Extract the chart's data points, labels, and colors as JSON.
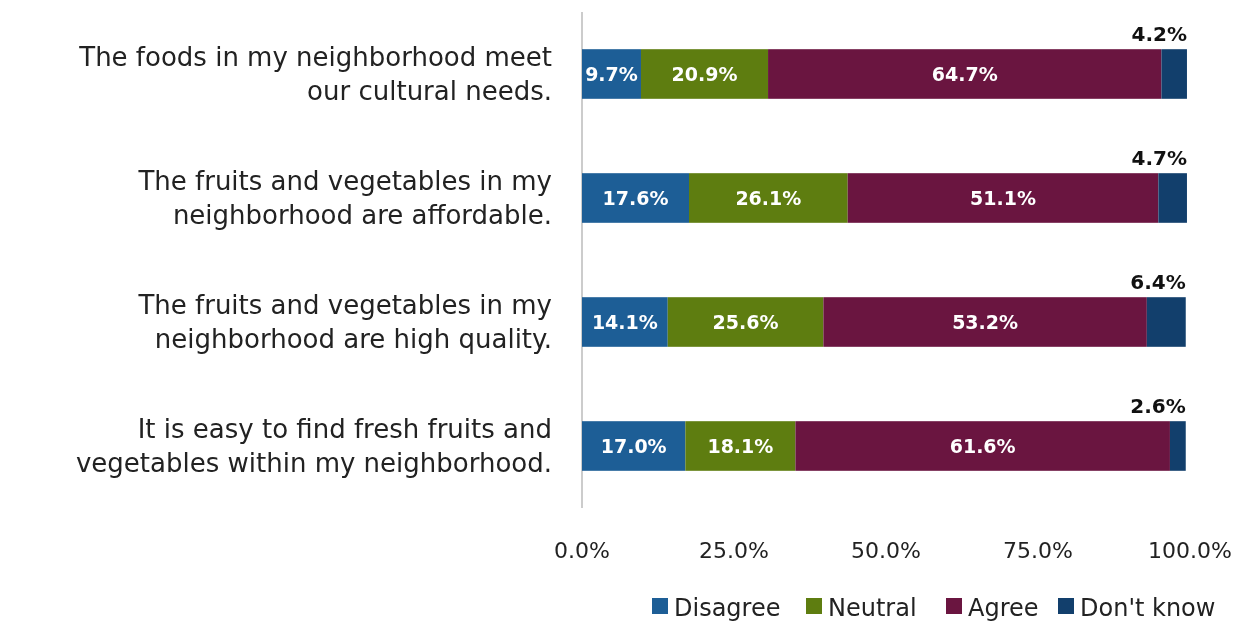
{
  "chart_data": {
    "type": "bar",
    "orientation": "horizontal",
    "stacked": true,
    "categories": [
      "The foods in my neighborhood meet our cultural needs.",
      "The fruits and vegetables in my neighborhood are affordable.",
      "The fruits and vegetables in my neighborhood are high quality.",
      "It is easy to find fresh fruits and vegetables within my neighborhood."
    ],
    "series": [
      {
        "name": "Disagree",
        "color": "#1d5e96",
        "values": [
          9.7,
          17.6,
          14.1,
          17.0
        ],
        "value_labels": [
          "9.7%",
          "17.6%",
          "14.1%",
          "17.0%"
        ]
      },
      {
        "name": "Neutral",
        "color": "#5e7d10",
        "values": [
          20.9,
          26.1,
          25.6,
          18.1
        ],
        "value_labels": [
          "20.9%",
          "26.1%",
          "25.6%",
          "18.1%"
        ]
      },
      {
        "name": "Agree",
        "color": "#6a1540",
        "values": [
          64.7,
          51.1,
          53.2,
          61.6
        ],
        "value_labels": [
          "64.7%",
          "51.1%",
          "53.2%",
          "61.6%"
        ]
      },
      {
        "name": "Don't know",
        "color": "#123f6c",
        "values": [
          4.2,
          4.7,
          6.4,
          2.6
        ],
        "value_labels": [
          "4.2%",
          "4.7%",
          "6.4%",
          "2.6%"
        ]
      }
    ],
    "xlim": [
      0,
      100
    ],
    "xticks": [
      {
        "value": 0,
        "label": "0.0%"
      },
      {
        "value": 25,
        "label": "25.0%"
      },
      {
        "value": 50,
        "label": "50.0%"
      },
      {
        "value": 75,
        "label": "75.0%"
      },
      {
        "value": 100,
        "label": "100.0%"
      }
    ],
    "grid": false,
    "legend": "bottom"
  }
}
